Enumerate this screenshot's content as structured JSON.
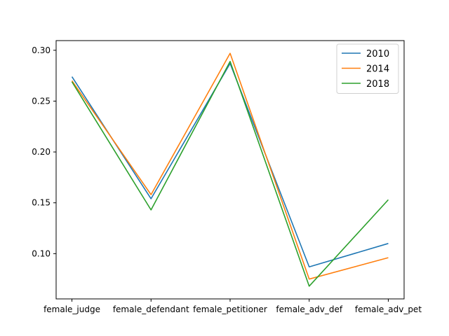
{
  "chart_data": {
    "type": "line",
    "title": "",
    "xlabel": "",
    "ylabel": "",
    "categories": [
      "female_judge",
      "female_defendant",
      "female_petitioner",
      "female_adv_def",
      "female_adv_pet"
    ],
    "ylim": [
      0.0555,
      0.3095
    ],
    "yticks": [
      "0.10",
      "0.15",
      "0.20",
      "0.25",
      "0.30"
    ],
    "grid": false,
    "legend_position": "top-right",
    "series": [
      {
        "name": "2010",
        "color": "#1f77b4",
        "values": [
          0.274,
          0.154,
          0.287,
          0.087,
          0.11
        ]
      },
      {
        "name": "2014",
        "color": "#ff7f0e",
        "values": [
          0.27,
          0.158,
          0.297,
          0.075,
          0.096
        ]
      },
      {
        "name": "2018",
        "color": "#2ca02c",
        "values": [
          0.269,
          0.143,
          0.289,
          0.068,
          0.153
        ]
      }
    ]
  }
}
